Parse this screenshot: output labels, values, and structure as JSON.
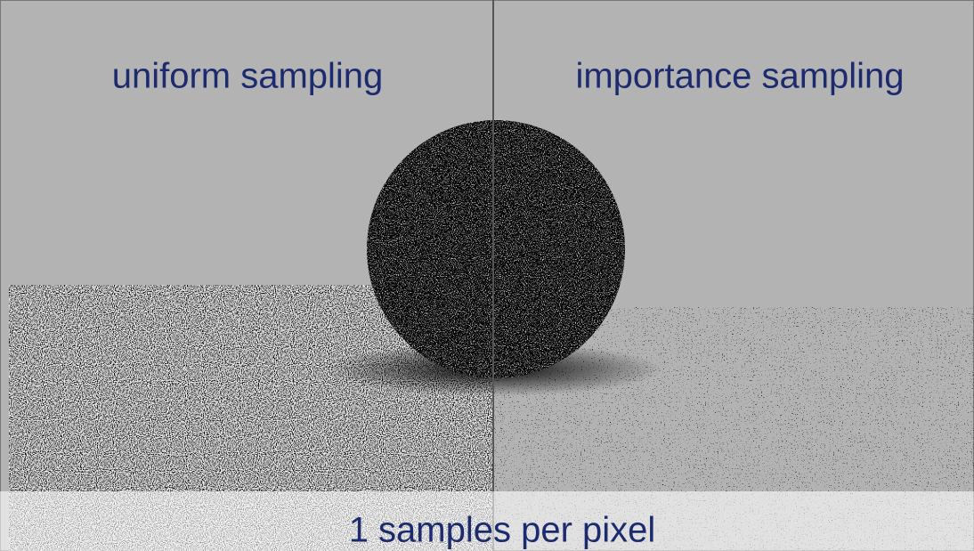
{
  "labels": {
    "left": "uniform sampling",
    "right": "importance sampling",
    "footer": "1 samples per pixel"
  }
}
